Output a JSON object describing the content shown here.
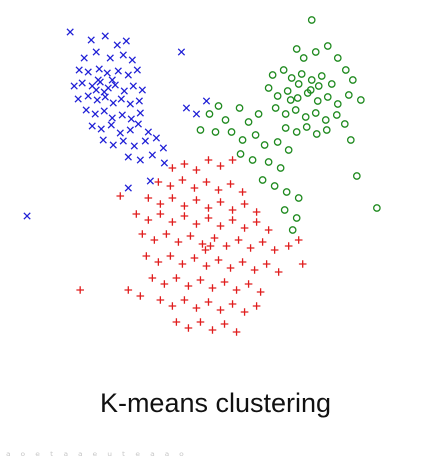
{
  "chart_data": {
    "type": "scatter",
    "title": "K-means clustering",
    "xlabel": "",
    "ylabel": "",
    "xlim": [
      0,
      430
    ],
    "ylim": [
      0,
      360
    ],
    "grid": false,
    "legend": "none",
    "series": [
      {
        "marker": "x",
        "color": "#1f1fd6",
        "points": [
          [
            70,
            32
          ],
          [
            91,
            40
          ],
          [
            105,
            36
          ],
          [
            117,
            45
          ],
          [
            126,
            41
          ],
          [
            84,
            58
          ],
          [
            96,
            52
          ],
          [
            110,
            58
          ],
          [
            123,
            55
          ],
          [
            132,
            60
          ],
          [
            79,
            70
          ],
          [
            88,
            72
          ],
          [
            99,
            69
          ],
          [
            107,
            73
          ],
          [
            118,
            71
          ],
          [
            128,
            75
          ],
          [
            137,
            70
          ],
          [
            74,
            86
          ],
          [
            82,
            83
          ],
          [
            92,
            86
          ],
          [
            100,
            82
          ],
          [
            108,
            88
          ],
          [
            115,
            85
          ],
          [
            124,
            91
          ],
          [
            133,
            86
          ],
          [
            142,
            90
          ],
          [
            78,
            99
          ],
          [
            88,
            96
          ],
          [
            97,
            100
          ],
          [
            105,
            97
          ],
          [
            113,
            103
          ],
          [
            121,
            99
          ],
          [
            130,
            104
          ],
          [
            139,
            101
          ],
          [
            86,
            110
          ],
          [
            95,
            114
          ],
          [
            104,
            111
          ],
          [
            112,
            118
          ],
          [
            122,
            115
          ],
          [
            131,
            119
          ],
          [
            140,
            113
          ],
          [
            92,
            126
          ],
          [
            101,
            129
          ],
          [
            111,
            125
          ],
          [
            120,
            133
          ],
          [
            130,
            130
          ],
          [
            138,
            124
          ],
          [
            148,
            132
          ],
          [
            103,
            140
          ],
          [
            113,
            145
          ],
          [
            123,
            141
          ],
          [
            134,
            146
          ],
          [
            145,
            141
          ],
          [
            156,
            138
          ],
          [
            163,
            148
          ],
          [
            128,
            157
          ],
          [
            140,
            160
          ],
          [
            152,
            155
          ],
          [
            164,
            163
          ],
          [
            181,
            52
          ],
          [
            186,
            108
          ],
          [
            196,
            114
          ],
          [
            206,
            101
          ],
          [
            150,
            181
          ],
          [
            128,
            188
          ],
          [
            27,
            216
          ],
          [
            96,
            90
          ],
          [
            104,
            92
          ],
          [
            98,
            80
          ],
          [
            112,
            80
          ]
        ]
      },
      {
        "marker": "o",
        "color": "#1f8a1f",
        "points": [
          [
            311,
            20
          ],
          [
            296,
            49
          ],
          [
            303,
            58
          ],
          [
            315,
            52
          ],
          [
            327,
            46
          ],
          [
            337,
            58
          ],
          [
            272,
            75
          ],
          [
            283,
            70
          ],
          [
            291,
            78
          ],
          [
            301,
            74
          ],
          [
            311,
            80
          ],
          [
            321,
            76
          ],
          [
            331,
            84
          ],
          [
            345,
            70
          ],
          [
            352,
            80
          ],
          [
            268,
            88
          ],
          [
            277,
            96
          ],
          [
            287,
            91
          ],
          [
            297,
            98
          ],
          [
            307,
            93
          ],
          [
            317,
            101
          ],
          [
            327,
            97
          ],
          [
            337,
            104
          ],
          [
            348,
            95
          ],
          [
            275,
            108
          ],
          [
            285,
            114
          ],
          [
            295,
            110
          ],
          [
            305,
            117
          ],
          [
            315,
            113
          ],
          [
            325,
            120
          ],
          [
            336,
            115
          ],
          [
            344,
            124
          ],
          [
            285,
            128
          ],
          [
            296,
            132
          ],
          [
            306,
            127
          ],
          [
            316,
            134
          ],
          [
            326,
            130
          ],
          [
            209,
            114
          ],
          [
            218,
            106
          ],
          [
            225,
            120
          ],
          [
            239,
            108
          ],
          [
            248,
            122
          ],
          [
            258,
            114
          ],
          [
            231,
            132
          ],
          [
            242,
            140
          ],
          [
            255,
            135
          ],
          [
            264,
            145
          ],
          [
            277,
            142
          ],
          [
            288,
            150
          ],
          [
            240,
            154
          ],
          [
            252,
            160
          ],
          [
            268,
            162
          ],
          [
            280,
            168
          ],
          [
            262,
            180
          ],
          [
            274,
            186
          ],
          [
            286,
            192
          ],
          [
            298,
            198
          ],
          [
            284,
            210
          ],
          [
            296,
            218
          ],
          [
            292,
            230
          ],
          [
            356,
            176
          ],
          [
            376,
            208
          ],
          [
            360,
            100
          ],
          [
            350,
            140
          ],
          [
            215,
            132
          ],
          [
            200,
            130
          ],
          [
            298,
            84
          ],
          [
            310,
            90
          ],
          [
            290,
            100
          ],
          [
            318,
            86
          ]
        ]
      },
      {
        "marker": "+",
        "color": "#e01d1d",
        "points": [
          [
            172,
            168
          ],
          [
            184,
            164
          ],
          [
            196,
            170
          ],
          [
            208,
            160
          ],
          [
            220,
            166
          ],
          [
            232,
            160
          ],
          [
            158,
            182
          ],
          [
            170,
            186
          ],
          [
            182,
            180
          ],
          [
            194,
            188
          ],
          [
            206,
            182
          ],
          [
            218,
            190
          ],
          [
            230,
            184
          ],
          [
            242,
            192
          ],
          [
            148,
            198
          ],
          [
            160,
            204
          ],
          [
            172,
            198
          ],
          [
            184,
            206
          ],
          [
            196,
            200
          ],
          [
            208,
            208
          ],
          [
            220,
            202
          ],
          [
            232,
            210
          ],
          [
            244,
            204
          ],
          [
            256,
            212
          ],
          [
            136,
            214
          ],
          [
            148,
            220
          ],
          [
            160,
            214
          ],
          [
            172,
            222
          ],
          [
            184,
            216
          ],
          [
            196,
            224
          ],
          [
            208,
            218
          ],
          [
            220,
            226
          ],
          [
            232,
            220
          ],
          [
            244,
            228
          ],
          [
            256,
            222
          ],
          [
            268,
            230
          ],
          [
            142,
            234
          ],
          [
            154,
            240
          ],
          [
            166,
            234
          ],
          [
            178,
            242
          ],
          [
            190,
            236
          ],
          [
            202,
            244
          ],
          [
            214,
            238
          ],
          [
            226,
            246
          ],
          [
            238,
            240
          ],
          [
            250,
            248
          ],
          [
            262,
            242
          ],
          [
            274,
            250
          ],
          [
            288,
            246
          ],
          [
            146,
            256
          ],
          [
            158,
            262
          ],
          [
            170,
            256
          ],
          [
            182,
            264
          ],
          [
            194,
            258
          ],
          [
            206,
            266
          ],
          [
            218,
            260
          ],
          [
            230,
            268
          ],
          [
            242,
            262
          ],
          [
            254,
            270
          ],
          [
            266,
            264
          ],
          [
            278,
            272
          ],
          [
            152,
            278
          ],
          [
            164,
            284
          ],
          [
            176,
            278
          ],
          [
            188,
            286
          ],
          [
            200,
            280
          ],
          [
            212,
            288
          ],
          [
            224,
            282
          ],
          [
            236,
            290
          ],
          [
            248,
            284
          ],
          [
            260,
            292
          ],
          [
            128,
            290
          ],
          [
            140,
            296
          ],
          [
            160,
            300
          ],
          [
            172,
            306
          ],
          [
            184,
            300
          ],
          [
            196,
            308
          ],
          [
            208,
            302
          ],
          [
            220,
            310
          ],
          [
            232,
            304
          ],
          [
            244,
            312
          ],
          [
            256,
            306
          ],
          [
            176,
            322
          ],
          [
            188,
            328
          ],
          [
            200,
            322
          ],
          [
            212,
            330
          ],
          [
            224,
            324
          ],
          [
            236,
            332
          ],
          [
            80,
            290
          ],
          [
            120,
            196
          ],
          [
            298,
            240
          ],
          [
            302,
            264
          ],
          [
            210,
            246
          ],
          [
            205,
            250
          ]
        ]
      }
    ]
  },
  "caption": "K-means clustering",
  "clipped_bottom_text": "ᵃ ᵒ ᵉ ᵗ ᵃ ᵃ ᵉ ᵘ ᵗ ᵉ ᵃ ᵃ ᵒ"
}
